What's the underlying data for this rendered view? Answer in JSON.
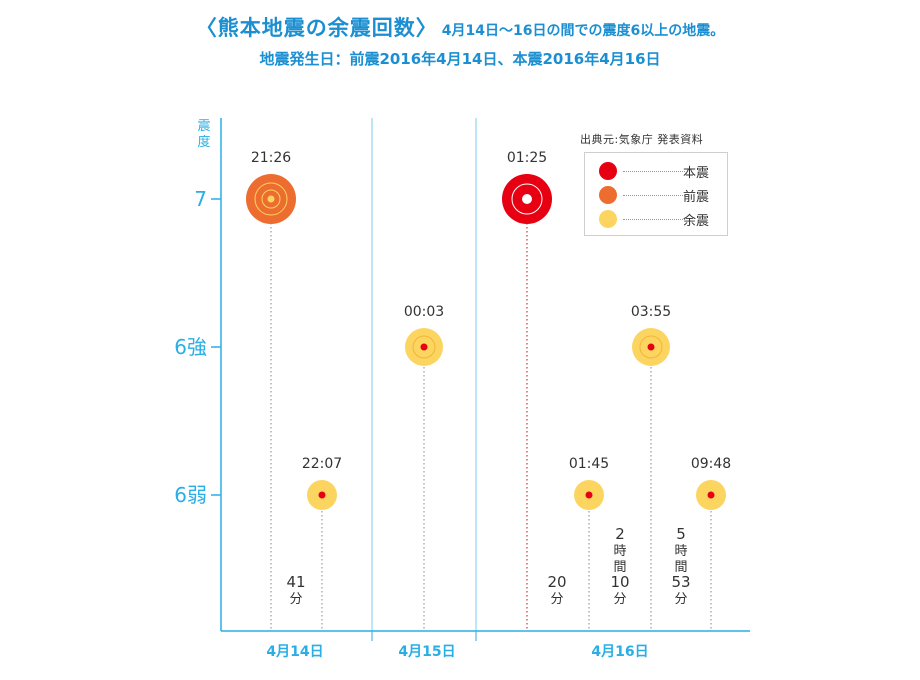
{
  "header": {
    "title": "〈熊本地震の余震回数〉",
    "note": "4月14日〜16日の間での震度6以上の地震。",
    "subtitle": "地震発生日：前震2016年4月14日、本震2016年4月16日"
  },
  "legend": {
    "source": "出典元:気象庁 発表資料",
    "items": [
      {
        "label": "本震",
        "color": "#e60012"
      },
      {
        "label": "前震",
        "color": "#ec6d2f"
      },
      {
        "label": "余震",
        "color": "#fcd560"
      }
    ]
  },
  "chart_data": {
    "type": "scatter",
    "ylabel": "震度",
    "y_levels": [
      "7",
      "6強",
      "6弱"
    ],
    "x_categories": [
      "4月14日",
      "4月15日",
      "4月16日"
    ],
    "grid": true,
    "events": [
      {
        "time": "21:26",
        "date": "4月14日",
        "intensity": "7",
        "kind": "前震"
      },
      {
        "time": "22:07",
        "date": "4月14日",
        "intensity": "6弱",
        "kind": "余震"
      },
      {
        "time": "00:03",
        "date": "4月15日",
        "intensity": "6強",
        "kind": "余震"
      },
      {
        "time": "01:25",
        "date": "4月16日",
        "intensity": "7",
        "kind": "本震"
      },
      {
        "time": "01:45",
        "date": "4月16日",
        "intensity": "6弱",
        "kind": "余震"
      },
      {
        "time": "03:55",
        "date": "4月16日",
        "intensity": "6強",
        "kind": "余震"
      },
      {
        "time": "09:48",
        "date": "4月16日",
        "intensity": "6弱",
        "kind": "余震"
      }
    ],
    "intervals": [
      {
        "lines": [
          "41",
          "分"
        ]
      },
      {
        "lines": [
          "20",
          "分"
        ]
      },
      {
        "lines": [
          "2",
          "時",
          "間",
          "10",
          "分"
        ]
      },
      {
        "lines": [
          "5",
          "時",
          "間",
          "53",
          "分"
        ]
      }
    ]
  },
  "colors": {
    "axis": "#29aee6",
    "main_shock": "#e60012",
    "foreshock": "#ec6d2f",
    "aftershock": "#fcd560",
    "accent": "#1b8fd1"
  }
}
